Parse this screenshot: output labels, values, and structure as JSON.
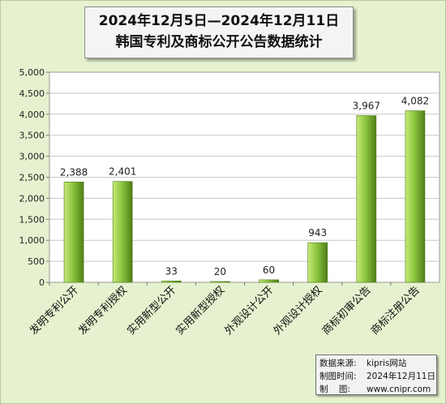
{
  "title": {
    "line1": "2024年12月5日—2024年12月11日",
    "line2": "韩国专利及商标公开公告数据统计"
  },
  "source_box": {
    "source_label": "数据来源:",
    "source_value": "kipris网站",
    "date_label": "制图时间:",
    "date_value": "2024年12月11日",
    "maker_label": "制    图:",
    "maker_value": "www.cnipr.com"
  },
  "colors": {
    "background": "#e6f2cf",
    "plot_background": "#ffffff",
    "bar_light": "#c8e87a",
    "bar_mid": "#8cc63f",
    "bar_dark": "#4f7d19",
    "grid": "#c8c8c8"
  },
  "chart_data": {
    "type": "bar",
    "categories": [
      "发明专利公开",
      "发明专利授权",
      "实用新型公开",
      "实用新型授权",
      "外观设计公开",
      "外观设计授权",
      "商标初审公告",
      "商标注册公告"
    ],
    "values": [
      2388,
      2401,
      33,
      20,
      60,
      943,
      3967,
      4082
    ],
    "data_labels": [
      "2,388",
      "2,401",
      "33",
      "20",
      "60",
      "943",
      "3,967",
      "4,082"
    ],
    "yticks": [
      "0",
      "500",
      "1,000",
      "1,500",
      "2,000",
      "2,500",
      "3,000",
      "3,500",
      "4,000",
      "4,500",
      "5,000"
    ],
    "ylim": [
      0,
      5000
    ],
    "grid": true,
    "legend": "none",
    "xlabel": "",
    "ylabel": ""
  }
}
